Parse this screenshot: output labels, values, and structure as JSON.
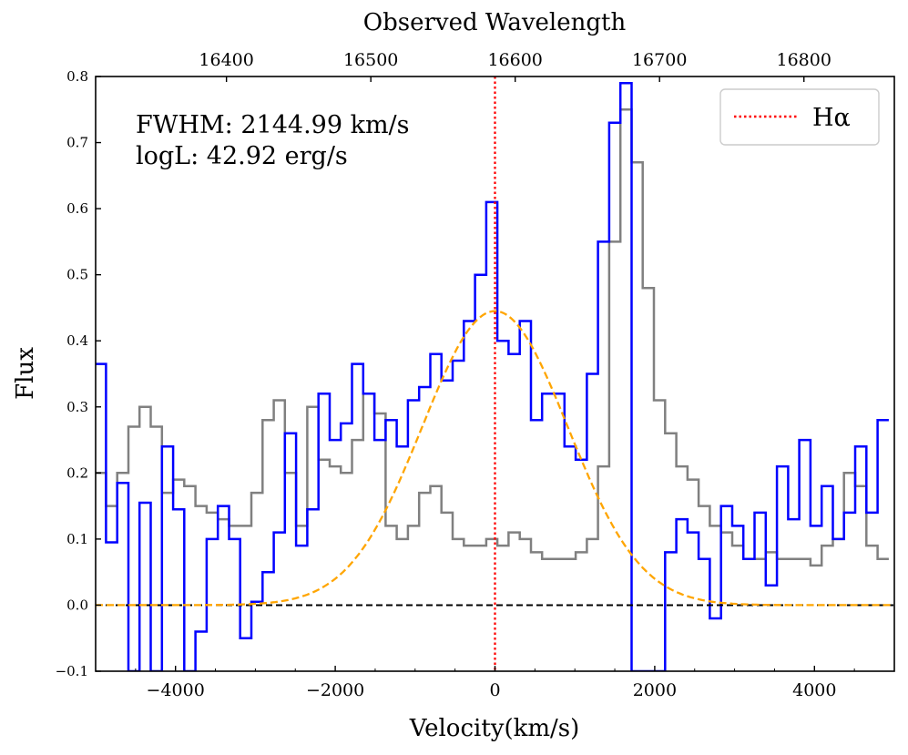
{
  "chart_data": {
    "type": "line",
    "xlabel": "Velocity(km/s)",
    "ylabel": "Flux",
    "top_xlabel": "Observed Wavelength",
    "xlim": [
      -5000,
      5000
    ],
    "ylim": [
      -0.1,
      0.8
    ],
    "x_ticks": [
      -4000,
      -2000,
      0,
      2000,
      4000
    ],
    "x_tick_labels": [
      "−4000",
      "−2000",
      "0",
      "2000",
      "4000"
    ],
    "y_ticks": [
      -0.1,
      0.0,
      0.1,
      0.2,
      0.3,
      0.4,
      0.5,
      0.6,
      0.7,
      0.8
    ],
    "y_tick_labels": [
      "−0.1",
      "0.0",
      "0.1",
      "0.2",
      "0.3",
      "0.4",
      "0.5",
      "0.6",
      "0.7",
      "0.8"
    ],
    "top_axis": {
      "wavelength_at_zero_velocity": 16586,
      "ticks": [
        16400,
        16500,
        16600,
        16700,
        16800
      ],
      "tick_labels": [
        "16400",
        "16500",
        "16600",
        "16700",
        "16800"
      ]
    },
    "annotations": [
      "FWHM: 2144.99 km/s",
      "logL: 42.92 erg/s"
    ],
    "legend": {
      "label": "Hα",
      "placement": "top-right",
      "style": "dotted",
      "color": "#ff0000"
    },
    "reference_lines": [
      {
        "name": "zero-flux",
        "type": "horizontal",
        "y": 0.0,
        "color": "#000000",
        "style": "dashed"
      },
      {
        "name": "halpha-center",
        "type": "vertical",
        "x": 0,
        "color": "#ff0000",
        "style": "dotted"
      }
    ],
    "series": [
      {
        "name": "spectrum",
        "kind": "step",
        "color": "#0000ff",
        "bin_width": 140,
        "x": [
          -4940,
          -4800,
          -4660,
          -4520,
          -4380,
          -4240,
          -4100,
          -3960,
          -3820,
          -3680,
          -3540,
          -3400,
          -3260,
          -3120,
          -2980,
          -2840,
          -2700,
          -2560,
          -2420,
          -2280,
          -2140,
          -2000,
          -1860,
          -1720,
          -1580,
          -1440,
          -1300,
          -1160,
          -1020,
          -880,
          -740,
          -600,
          -460,
          -320,
          -180,
          -40,
          100,
          240,
          380,
          520,
          660,
          800,
          940,
          1080,
          1220,
          1360,
          1500,
          1640,
          1780,
          1920,
          2060,
          2200,
          2340,
          2480,
          2620,
          2760,
          2900,
          3040,
          3180,
          3320,
          3460,
          3600,
          3740,
          3880,
          4020,
          4160,
          4300,
          4440,
          4580,
          4720,
          4860
        ],
        "values": [
          0.365,
          0.095,
          0.185,
          -0.1,
          0.155,
          -0.1,
          0.24,
          0.145,
          -0.1,
          -0.04,
          0.1,
          0.15,
          0.1,
          -0.05,
          0.005,
          0.05,
          0.11,
          0.26,
          0.09,
          0.145,
          0.32,
          0.25,
          0.275,
          0.365,
          0.32,
          0.25,
          0.28,
          0.24,
          0.31,
          0.33,
          0.38,
          0.34,
          0.37,
          0.43,
          0.5,
          0.61,
          0.4,
          0.38,
          0.43,
          0.28,
          0.32,
          0.32,
          0.24,
          0.22,
          0.35,
          0.55,
          0.73,
          0.79,
          -0.1,
          -0.1,
          -0.1,
          0.08,
          0.13,
          0.11,
          0.07,
          -0.02,
          0.15,
          0.12,
          0.07,
          0.14,
          0.03,
          0.21,
          0.13,
          0.25,
          0.12,
          0.18,
          0.1,
          0.14,
          0.24,
          0.14,
          0.28
        ]
      },
      {
        "name": "residual",
        "kind": "step",
        "color": "#808080",
        "bin_width": 140,
        "x": [
          -4940,
          -4800,
          -4660,
          -4520,
          -4380,
          -4240,
          -4100,
          -3960,
          -3820,
          -3680,
          -3540,
          -3400,
          -3260,
          -3120,
          -2980,
          -2840,
          -2700,
          -2560,
          -2420,
          -2280,
          -2140,
          -2000,
          -1860,
          -1720,
          -1580,
          -1440,
          -1300,
          -1160,
          -1020,
          -880,
          -740,
          -600,
          -460,
          -320,
          -180,
          -40,
          100,
          240,
          380,
          520,
          660,
          800,
          940,
          1080,
          1220,
          1360,
          1500,
          1640,
          1780,
          1920,
          2060,
          2200,
          2340,
          2480,
          2620,
          2760,
          2900,
          3040,
          3180,
          3320,
          3460,
          3600,
          3740,
          3880,
          4020,
          4160,
          4300,
          4440,
          4580,
          4720,
          4860
        ],
        "values": [
          0.2,
          0.15,
          0.2,
          0.27,
          0.3,
          0.27,
          0.17,
          0.19,
          0.18,
          0.15,
          0.14,
          0.13,
          0.12,
          0.12,
          0.17,
          0.28,
          0.31,
          0.2,
          0.12,
          0.3,
          0.22,
          0.21,
          0.2,
          0.25,
          0.32,
          0.29,
          0.12,
          0.1,
          0.12,
          0.17,
          0.18,
          0.14,
          0.1,
          0.09,
          0.09,
          0.1,
          0.09,
          0.11,
          0.1,
          0.08,
          0.07,
          0.07,
          0.07,
          0.08,
          0.1,
          0.21,
          0.55,
          0.75,
          0.67,
          0.48,
          0.31,
          0.26,
          0.21,
          0.19,
          0.15,
          0.12,
          0.11,
          0.09,
          0.07,
          0.07,
          0.08,
          0.07,
          0.07,
          0.07,
          0.06,
          0.09,
          0.1,
          0.2,
          0.18,
          0.09,
          0.07
        ]
      },
      {
        "name": "gaussian-fit",
        "kind": "gaussian",
        "color": "#ffa500",
        "style": "dashed",
        "amplitude": 0.445,
        "center": 0,
        "fwhm": 2144.99
      }
    ]
  }
}
